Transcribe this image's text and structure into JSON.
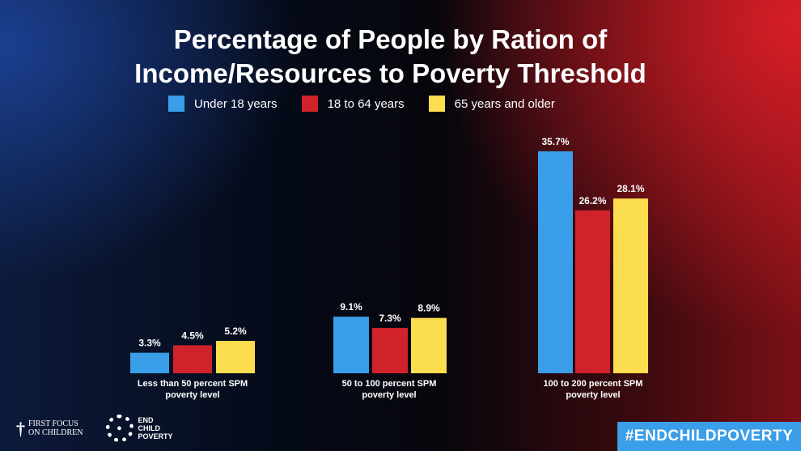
{
  "chart_data": {
    "type": "bar",
    "title": "Percentage of People by Ration of Income/Resources to Poverty Threshold",
    "title_lines": [
      "Percentage of People by Ration of",
      "Income/Resources to Poverty Threshold"
    ],
    "categories": [
      "Less than 50 percent SPM poverty level",
      "50 to 100 percent SPM poverty level",
      "100 to 200 percent SPM poverty level"
    ],
    "category_lines": [
      [
        "Less than 50 percent SPM",
        "poverty level"
      ],
      [
        "50 to 100 percent SPM",
        "poverty level"
      ],
      [
        "100 to 200 percent SPM",
        "poverty level"
      ]
    ],
    "series": [
      {
        "name": "Under 18 years",
        "color": "#3a9ee8",
        "values": [
          3.3,
          9.1,
          35.7
        ],
        "labels": [
          "3.3%",
          "9.1%",
          "35.7%"
        ]
      },
      {
        "name": "18 to 64 years",
        "color": "#d0222a",
        "values": [
          4.5,
          7.3,
          26.2
        ],
        "labels": [
          "4.5%",
          "7.3%",
          "26.2%"
        ]
      },
      {
        "name": "65 years and older",
        "color": "#fddd50",
        "values": [
          5.2,
          8.9,
          28.1
        ],
        "labels": [
          "5.2%",
          "8.9%",
          "28.1%"
        ]
      }
    ],
    "legend_position": "top-center",
    "grid": false,
    "ylim": [
      0,
      40
    ]
  },
  "logos": {
    "first_focus": [
      "FIRST FOCUS",
      "ON CHILDREN"
    ],
    "end_child_poverty": [
      "END",
      "CHILD",
      "POVERTY"
    ]
  },
  "hashtag": "#ENDCHILDPOVERTY"
}
